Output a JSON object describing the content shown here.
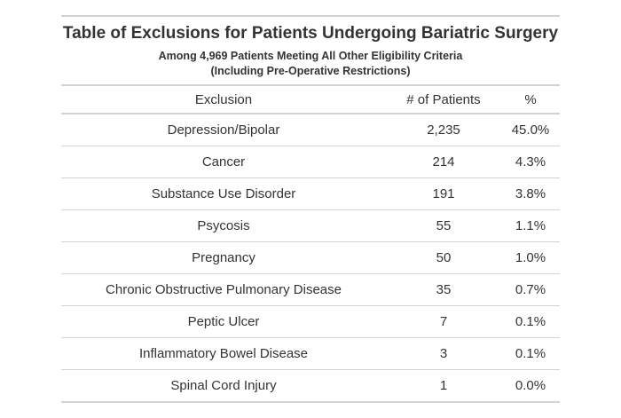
{
  "table": {
    "title": "Table of Exclusions for Patients Undergoing Bariatric Surgery",
    "subtitle_line1": "Among 4,969 Patients Meeting All Other Eligibility Criteria",
    "subtitle_line2": "(Including Pre-Operative Restrictions)",
    "columns": [
      "Exclusion",
      "# of Patients",
      "%"
    ],
    "rows": [
      {
        "exclusion": "Depression/Bipolar",
        "patients": "2,235",
        "percent": "45.0%"
      },
      {
        "exclusion": "Cancer",
        "patients": "214",
        "percent": "4.3%"
      },
      {
        "exclusion": "Substance Use Disorder",
        "patients": "191",
        "percent": "3.8%"
      },
      {
        "exclusion": "Psycosis",
        "patients": "55",
        "percent": "1.1%"
      },
      {
        "exclusion": "Pregnancy",
        "patients": "50",
        "percent": "1.0%"
      },
      {
        "exclusion": "Chronic Obstructive Pulmonary Disease",
        "patients": "35",
        "percent": "0.7%"
      },
      {
        "exclusion": "Peptic Ulcer",
        "patients": "7",
        "percent": "0.1%"
      },
      {
        "exclusion": "Inflammatory Bowel Disease",
        "patients": "3",
        "percent": "0.1%"
      },
      {
        "exclusion": "Spinal Cord Injury",
        "patients": "1",
        "percent": "0.0%"
      }
    ]
  }
}
